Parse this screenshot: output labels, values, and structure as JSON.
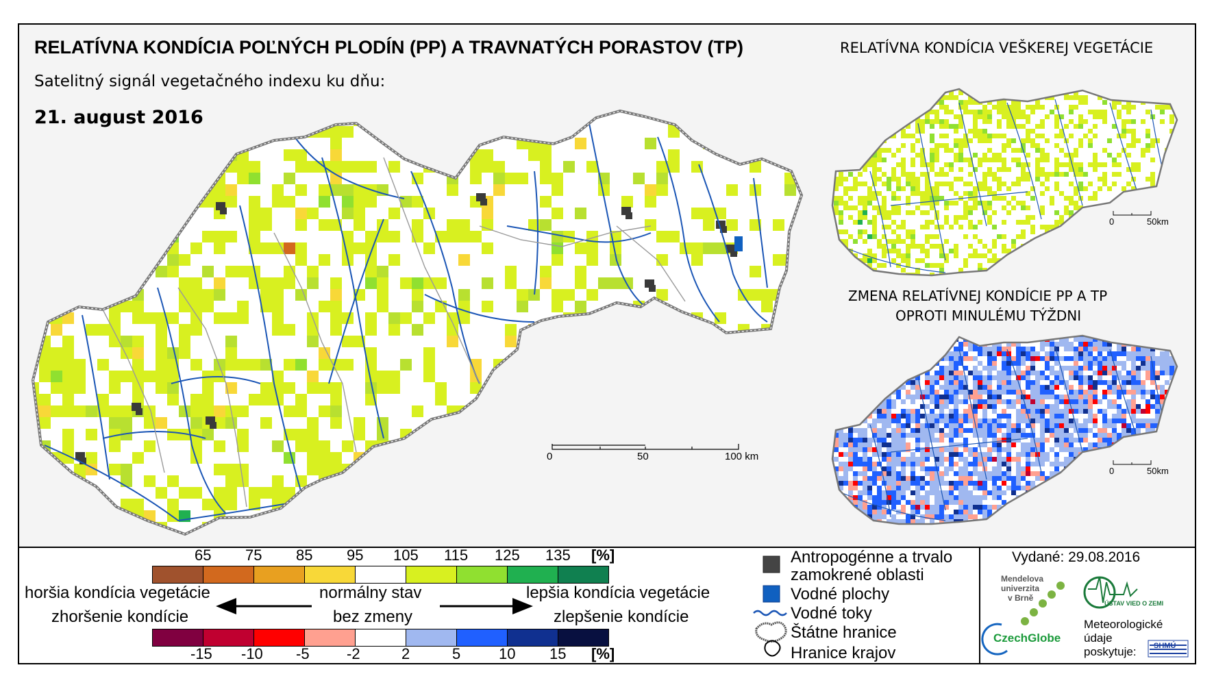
{
  "header": {
    "main_title": "RELATÍVNA KONDÍCIA POĽNÝCH PLODÍN (PP) A TRAVNATÝCH PORASTOV (TP)",
    "subtitle": "Satelitný signál vegetačného indexu ku dňu:",
    "date": "21. august 2016",
    "right_title": "RELATÍVNA KONDÍCIA VEŠKEREJ VEGETÁCIE",
    "change_title_1": "ZMENA RELATÍVNEJ KONDÍCIE PP A TP",
    "change_title_2": "OPROTI MINULÉMU TÝŽDNI"
  },
  "main_scale": {
    "t0": "0",
    "t1": "50",
    "t2": "100 km"
  },
  "small_scale_1": {
    "t0": "0",
    "t1": "50km"
  },
  "small_scale_2": {
    "t0": "0",
    "t1": "50km"
  },
  "legend_condition": {
    "ticks": [
      "65",
      "75",
      "85",
      "95",
      "105",
      "115",
      "125",
      "135"
    ],
    "unit": "[%]",
    "colors": [
      "#a0522d",
      "#d2691e",
      "#e8a020",
      "#f8d838",
      "#ffffff",
      "#d8f020",
      "#90e030",
      "#20b050",
      "#108050"
    ]
  },
  "legend_change": {
    "ticks": [
      "-15",
      "-10",
      "-5",
      "-2",
      "2",
      "5",
      "10",
      "15"
    ],
    "unit": "[%]",
    "colors": [
      "#800040",
      "#c00030",
      "#ff0000",
      "#ffa090",
      "#ffffff",
      "#a0b8f0",
      "#2060ff",
      "#103090",
      "#081040"
    ]
  },
  "legend_labels": {
    "worse_1": "horšia kondícia vegetácie",
    "worse_2": "zhoršenie kondície",
    "normal_1": "normálny stav",
    "normal_2": "bez zmeny",
    "better_1": "lepšia kondícia vegetácie",
    "better_2": "zlepšenie kondície"
  },
  "map_legend": {
    "anthropo_1": "Antropogénne a trvalo",
    "anthropo_2": "zamokrené oblasti",
    "water_areas": "Vodné plochy",
    "rivers": "Vodné toky",
    "borders": "Štátne hranice",
    "regions": "Hranice krajov"
  },
  "issued": "Vydané: 29.08.2016",
  "logos": {
    "mendel_1": "Mendelova",
    "mendel_2": "univerzita",
    "mendel_3": "v Brně",
    "czechglobe": "CzechGlobe",
    "uvz": "ÚSTAV VIED O ZEMI",
    "shmu": "SHMÚ"
  },
  "provider_1": "Meteorologické",
  "provider_2": "údaje",
  "provider_3": "poskytuje:"
}
